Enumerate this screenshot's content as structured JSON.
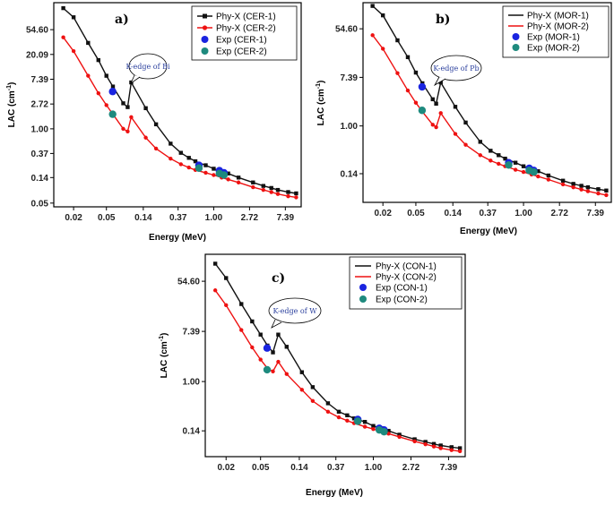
{
  "figure": {
    "colors": {
      "black": "#111111",
      "red": "#ee1111",
      "blue": "#1a24e0",
      "teal": "#1e8a7e",
      "axis": "#000000"
    },
    "x_ticks": [
      "0.02",
      "0.05",
      "0.14",
      "0.37",
      "1.00",
      "2.72",
      "7.39"
    ]
  },
  "chart_data": [
    {
      "type": "line",
      "panel": "a)",
      "xlabel": "Energy (MeV)",
      "ylabel": "LAC (cm",
      "ylabel_sup": "-1",
      "ylabel_close": ")",
      "x_scale": "log",
      "y_scale": "log",
      "xlim": [
        0.0115,
        11.5
      ],
      "ylim": [
        0.043,
        162
      ],
      "y_ticks": [
        "0.05",
        "0.14",
        "0.37",
        "1.00",
        "2.72",
        "7.39",
        "20.09",
        "54.60"
      ],
      "callout": "K-edge of Bi",
      "series": [
        {
          "name": "Phy-X  (CER-1)",
          "color": "black",
          "marker": "square",
          "legend_marker": "square",
          "x": [
            0.015,
            0.02,
            0.03,
            0.04,
            0.05,
            0.06,
            0.08,
            0.0905,
            0.1,
            0.15,
            0.2,
            0.3,
            0.4,
            0.5,
            0.6,
            0.8,
            1.0,
            1.25,
            1.5,
            2.0,
            3.0,
            4.0,
            5.0,
            6.0,
            8.0,
            10.0
          ],
          "y": [
            130,
            90,
            32,
            16,
            8.5,
            5.5,
            2.8,
            2.4,
            6.5,
            2.3,
            1.2,
            0.55,
            0.38,
            0.31,
            0.27,
            0.23,
            0.2,
            0.18,
            0.165,
            0.14,
            0.115,
            0.1,
            0.092,
            0.085,
            0.078,
            0.074
          ]
        },
        {
          "name": "Phy-X  (CER-2)",
          "color": "red",
          "marker": "dot",
          "legend_marker": "dot",
          "x": [
            0.015,
            0.02,
            0.03,
            0.04,
            0.05,
            0.06,
            0.08,
            0.0905,
            0.1,
            0.15,
            0.2,
            0.3,
            0.4,
            0.5,
            0.6,
            0.8,
            1.0,
            1.25,
            1.5,
            2.0,
            3.0,
            4.0,
            5.0,
            6.0,
            8.0,
            10.0
          ],
          "y": [
            40,
            23,
            8.5,
            4.2,
            2.6,
            1.8,
            1.0,
            0.9,
            1.6,
            0.7,
            0.45,
            0.3,
            0.24,
            0.21,
            0.19,
            0.17,
            0.155,
            0.14,
            0.13,
            0.115,
            0.095,
            0.085,
            0.078,
            0.072,
            0.066,
            0.063
          ]
        },
        {
          "name": "Exp (CER-1)",
          "color": "blue",
          "marker": "dot_big",
          "legend_marker": "dot_big",
          "x": [
            0.0595,
            0.662,
            1.173,
            1.332
          ],
          "y": [
            4.5,
            0.23,
            0.185,
            0.17
          ]
        },
        {
          "name": "Exp (CER-2)",
          "color": "teal",
          "marker": "dot_big",
          "legend_marker": "dot_big",
          "x": [
            0.0595,
            0.662,
            1.173,
            1.332
          ],
          "y": [
            1.8,
            0.205,
            0.165,
            0.155
          ]
        }
      ]
    },
    {
      "type": "line",
      "panel": "b)",
      "xlabel": "Energy (MeV)",
      "ylabel": "LAC (cm",
      "ylabel_sup": "-1",
      "ylabel_close": ")",
      "x_scale": "log",
      "y_scale": "log",
      "xlim": [
        0.0115,
        11.5
      ],
      "ylim": [
        0.043,
        160
      ],
      "y_ticks": [
        "0.14",
        "1.00",
        "7.39",
        "54.60"
      ],
      "callout": "K-edge of Pb",
      "series": [
        {
          "name": "Phy-X  (MOR-1)",
          "color": "black",
          "marker": "square",
          "legend_marker": "line",
          "x": [
            0.015,
            0.02,
            0.03,
            0.04,
            0.05,
            0.06,
            0.08,
            0.088,
            0.1,
            0.15,
            0.2,
            0.3,
            0.4,
            0.5,
            0.6,
            0.8,
            1.0,
            1.25,
            1.5,
            2.0,
            3.0,
            4.0,
            5.0,
            6.0,
            8.0,
            10.0
          ],
          "y": [
            140,
            95,
            34,
            17,
            9,
            5.8,
            3.0,
            2.5,
            6.0,
            2.2,
            1.15,
            0.52,
            0.36,
            0.3,
            0.26,
            0.22,
            0.19,
            0.17,
            0.155,
            0.13,
            0.105,
            0.092,
            0.085,
            0.08,
            0.074,
            0.07
          ]
        },
        {
          "name": "Phy-X  (MOR-2)",
          "color": "red",
          "marker": "dot",
          "legend_marker": "line",
          "x": [
            0.015,
            0.02,
            0.03,
            0.04,
            0.05,
            0.06,
            0.08,
            0.088,
            0.1,
            0.15,
            0.2,
            0.3,
            0.4,
            0.5,
            0.6,
            0.8,
            1.0,
            1.25,
            1.5,
            2.0,
            3.0,
            4.0,
            5.0,
            6.0,
            8.0,
            10.0
          ],
          "y": [
            42,
            24,
            8.8,
            4.3,
            2.6,
            1.8,
            1.05,
            0.95,
            1.7,
            0.72,
            0.46,
            0.3,
            0.24,
            0.21,
            0.19,
            0.165,
            0.15,
            0.135,
            0.125,
            0.11,
            0.09,
            0.08,
            0.073,
            0.068,
            0.062,
            0.058
          ]
        },
        {
          "name": "Exp (MOR-1)",
          "color": "blue",
          "marker": "dot_big",
          "legend_marker": "dot_big",
          "x": [
            0.0595,
            0.662,
            1.173,
            1.332
          ],
          "y": [
            5.0,
            0.22,
            0.175,
            0.16
          ]
        },
        {
          "name": "Exp (MOR-2)",
          "color": "teal",
          "marker": "dot_big",
          "legend_marker": "dot_big",
          "x": [
            0.0595,
            0.662,
            1.173,
            1.332
          ],
          "y": [
            1.9,
            0.2,
            0.16,
            0.15
          ]
        }
      ]
    },
    {
      "type": "line",
      "panel": "c)",
      "xlabel": "Energy (MeV)",
      "ylabel": "LAC (cm",
      "ylabel_sup": "-1",
      "ylabel_close": ")",
      "x_scale": "log",
      "y_scale": "log",
      "xlim": [
        0.0115,
        11.5
      ],
      "ylim": [
        0.05,
        160
      ],
      "y_ticks": [
        "0.14",
        "1.00",
        "7.39",
        "54.60"
      ],
      "callout": "K-edge of W",
      "series": [
        {
          "name": "Phy-X  (CON-1)",
          "color": "black",
          "marker": "square",
          "legend_marker": "line",
          "x": [
            0.015,
            0.02,
            0.03,
            0.04,
            0.05,
            0.06,
            0.0695,
            0.08,
            0.1,
            0.15,
            0.2,
            0.3,
            0.4,
            0.5,
            0.6,
            0.8,
            1.0,
            1.25,
            1.5,
            2.0,
            3.0,
            4.0,
            5.0,
            6.0,
            8.0,
            10.0
          ],
          "y": [
            110,
            62,
            22,
            11,
            6.5,
            4.2,
            3.2,
            6.5,
            4.0,
            1.45,
            0.8,
            0.42,
            0.3,
            0.26,
            0.23,
            0.2,
            0.17,
            0.155,
            0.14,
            0.12,
            0.1,
            0.09,
            0.083,
            0.078,
            0.073,
            0.07
          ]
        },
        {
          "name": "Phy-X  (CON-2)",
          "color": "red",
          "marker": "dot",
          "legend_marker": "line",
          "x": [
            0.015,
            0.02,
            0.03,
            0.04,
            0.05,
            0.06,
            0.0695,
            0.08,
            0.1,
            0.15,
            0.2,
            0.3,
            0.4,
            0.5,
            0.6,
            0.8,
            1.0,
            1.25,
            1.5,
            2.0,
            3.0,
            4.0,
            5.0,
            6.0,
            8.0,
            10.0
          ],
          "y": [
            38,
            21,
            7.8,
            3.9,
            2.4,
            1.7,
            1.5,
            2.2,
            1.35,
            0.72,
            0.46,
            0.3,
            0.24,
            0.21,
            0.19,
            0.165,
            0.15,
            0.135,
            0.125,
            0.11,
            0.092,
            0.082,
            0.075,
            0.07,
            0.065,
            0.062
          ]
        },
        {
          "name": "Exp (CON-1)",
          "color": "blue",
          "marker": "dot_big",
          "legend_marker": "dot_big",
          "x": [
            0.0595,
            0.662,
            1.173,
            1.332
          ],
          "y": [
            3.8,
            0.22,
            0.155,
            0.145
          ]
        },
        {
          "name": "Exp (CON-2)",
          "color": "teal",
          "marker": "dot_big",
          "legend_marker": "dot_big",
          "x": [
            0.0595,
            0.662,
            1.173,
            1.332
          ],
          "y": [
            1.6,
            0.205,
            0.145,
            0.135
          ]
        }
      ]
    }
  ]
}
